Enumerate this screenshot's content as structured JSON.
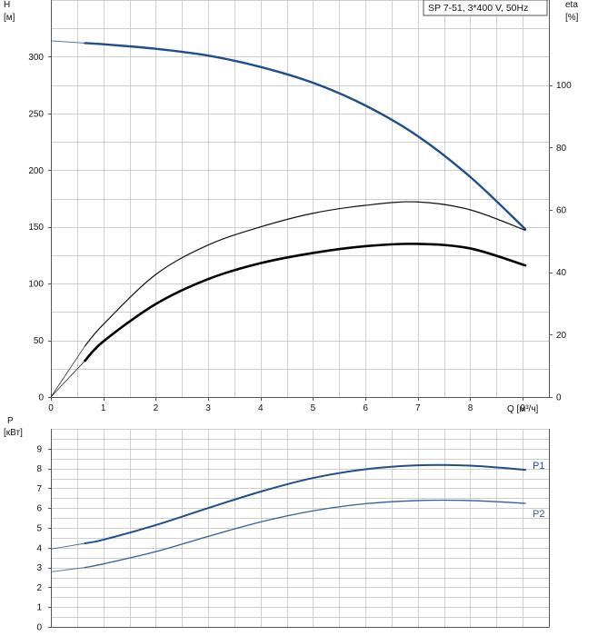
{
  "chart_data": [
    {
      "type": "line",
      "title": "SP 7-51, 3*400 V, 50Hz",
      "left_axis_label": "H",
      "left_axis_unit": "[м]",
      "right_axis_label": "eta",
      "right_axis_unit": "[%]",
      "x_axis_label": "Q [м³/ч]",
      "x_ticks": [
        "0",
        "1",
        "2",
        "3",
        "4",
        "5",
        "6",
        "7",
        "8",
        "9"
      ],
      "xlim": [
        0,
        9.5
      ],
      "ylim_left": [
        0,
        350
      ],
      "ylim_right": [
        0,
        127.3
      ],
      "y_ticks_left": [
        "0",
        "50",
        "100",
        "150",
        "200",
        "250",
        "300"
      ],
      "y_ticks_right": [
        "0",
        "20",
        "40",
        "60",
        "80",
        "100"
      ],
      "grid": true,
      "series": [
        {
          "role": "head",
          "color": "#1f4e8c",
          "axis": "left",
          "x": [
            0.65,
            1,
            2,
            3,
            4,
            5,
            6,
            7,
            8,
            9.05
          ],
          "y": [
            312,
            311,
            307,
            301,
            291,
            277,
            257,
            230,
            194,
            148
          ],
          "extension": {
            "x": [
              0,
              0.65
            ],
            "y": [
              314,
              312
            ]
          }
        },
        {
          "role": "eta",
          "color": "#111111",
          "axis": "left",
          "x": [
            0.65,
            1,
            2,
            3,
            4,
            5,
            6,
            7,
            8,
            9.05
          ],
          "y": [
            45,
            64,
            108,
            134,
            150,
            162,
            169,
            172,
            165,
            147
          ],
          "extension": {
            "x": [
              0,
              0.65
            ],
            "y": [
              0,
              45
            ]
          }
        },
        {
          "role": "npsh",
          "color": "#000000",
          "axis": "left",
          "x": [
            0.65,
            1,
            2,
            3,
            4,
            5,
            6,
            7,
            8,
            9.05
          ],
          "y": [
            32,
            49,
            82,
            104,
            118,
            127,
            133,
            135,
            131,
            116
          ],
          "extension": {
            "x": [
              0,
              0.65
            ],
            "y": [
              0,
              32
            ]
          }
        }
      ]
    },
    {
      "type": "line",
      "left_axis_label": "P",
      "left_axis_unit": "[кВт]",
      "xlim": [
        0,
        9.5
      ],
      "ylim": [
        0,
        10
      ],
      "y_ticks": [
        "0",
        "1",
        "2",
        "3",
        "4",
        "5",
        "6",
        "7",
        "8",
        "9"
      ],
      "grid": true,
      "series": [
        {
          "name": "P1",
          "color": "#1f4e8c",
          "x": [
            0.65,
            1,
            2,
            3,
            4,
            5,
            6,
            7,
            8,
            9.05
          ],
          "y": [
            4.22,
            4.4,
            5.14,
            6.0,
            6.83,
            7.52,
            7.96,
            8.16,
            8.14,
            7.93
          ],
          "extension": {
            "x": [
              0,
              0.65
            ],
            "y": [
              3.93,
              4.22
            ]
          }
        },
        {
          "name": "P2",
          "color": "#2e5f98",
          "x": [
            0.65,
            1,
            2,
            3,
            4,
            5,
            6,
            7,
            8,
            9.05
          ],
          "y": [
            3.0,
            3.18,
            3.8,
            4.57,
            5.3,
            5.86,
            6.22,
            6.38,
            6.38,
            6.24
          ],
          "extension": {
            "x": [
              0,
              0.65
            ],
            "y": [
              2.78,
              3.0
            ]
          }
        }
      ]
    }
  ]
}
